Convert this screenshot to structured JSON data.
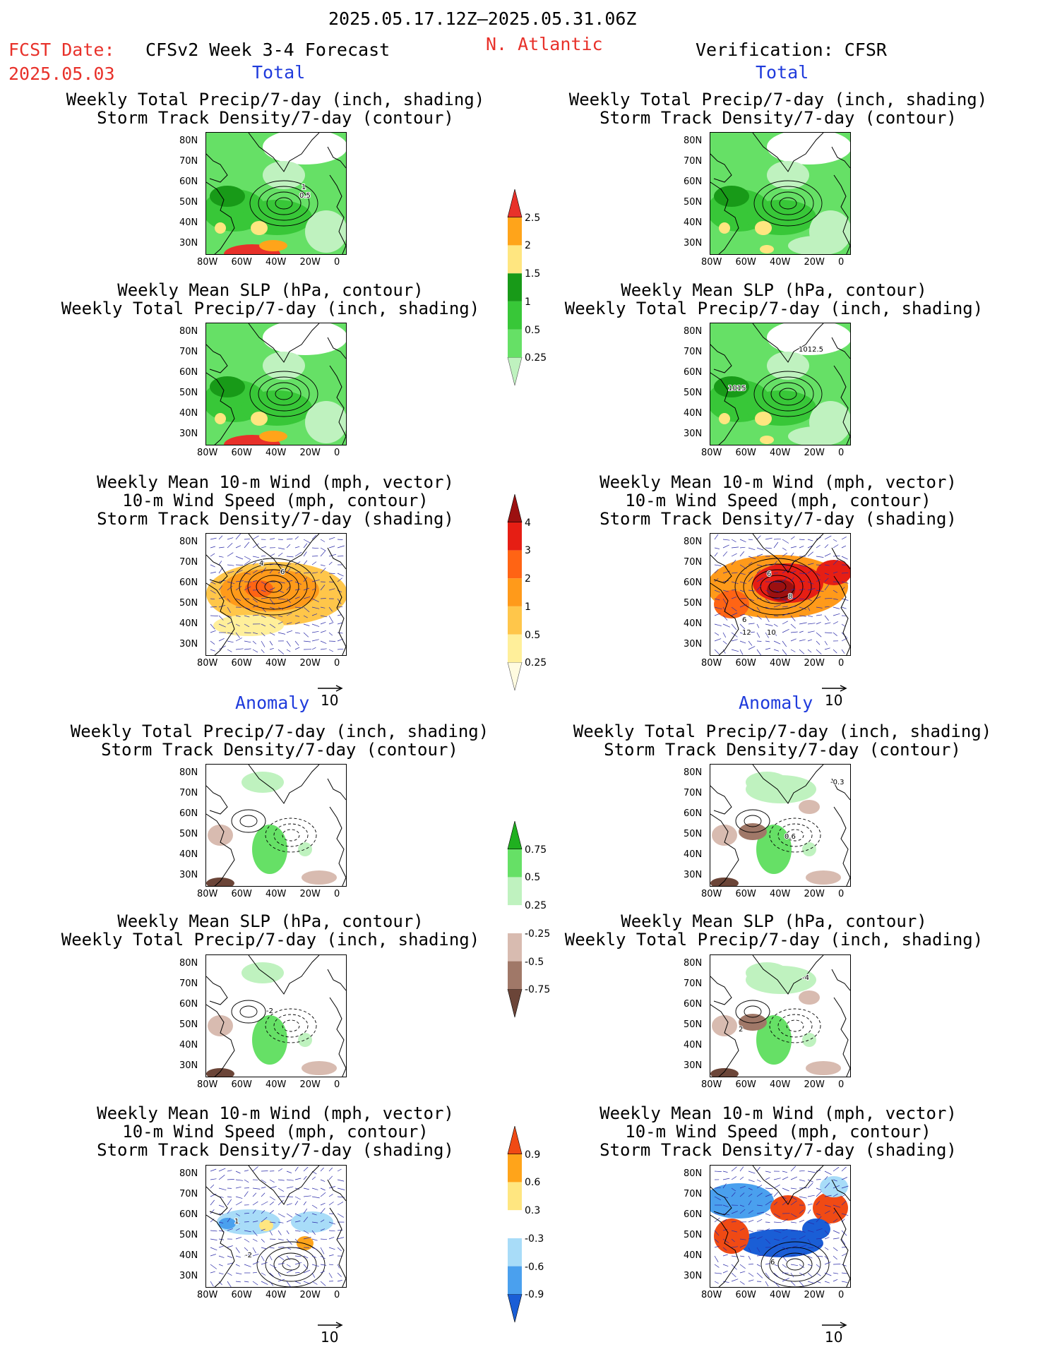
{
  "header": {
    "period": "2025.05.17.12Z–2025.05.31.06Z",
    "fcst_label": "FCST Date:",
    "fcst_date": "2025.05.03",
    "product": "CFSv2 Week 3-4 Forecast",
    "region": "N. Atlantic",
    "verification": "Verification: CFSR"
  },
  "sections": {
    "total": "Total",
    "anomaly": "Anomaly"
  },
  "titles": {
    "precip_storm": [
      "Weekly Total Precip/7-day (inch, shading)",
      "Storm Track Density/7-day (contour)"
    ],
    "slp_precip": [
      "Weekly Mean SLP (hPa, contour)",
      "Weekly Total Precip/7-day (inch, shading)"
    ],
    "wind_storm": [
      "Weekly Mean 10-m Wind (mph, vector)",
      "10-m Wind Speed (mph, contour)",
      "Storm Track Density/7-day (shading)"
    ]
  },
  "axes": {
    "x_ticks": [
      "80W",
      "60W",
      "40W",
      "20W",
      "0"
    ],
    "y_ticks": [
      "80N",
      "70N",
      "60N",
      "50N",
      "40N",
      "30N"
    ]
  },
  "vector_ref": "10",
  "contour_labels": {
    "p1_a": "1",
    "p1_b": "0.5",
    "p4_a": "1012.5",
    "p4_b": "1015",
    "p5_a": "4",
    "p5_b": "6",
    "p6_a": "6",
    "p6_b": "8",
    "p6_c": "6",
    "p6_d": "12",
    "p6_e": "10",
    "p8_a": "-0.3",
    "p8_b": "0.6",
    "p9_a": "-2",
    "p10_a": "-4",
    "p10_b": "2",
    "p11_a": "1",
    "p11_b": "-2",
    "p12_a": "6"
  },
  "chart_data": [
    {
      "type": "heatmap",
      "name": "Total precip colorbar",
      "levels": [
        "0.25",
        "0.5",
        "1",
        "1.5",
        "2",
        "2.5"
      ],
      "colors": [
        "#bff2bf",
        "#66e066",
        "#38c738",
        "#189a18",
        "#ffe680",
        "#ffa41a",
        "#e8312a"
      ]
    },
    {
      "type": "heatmap",
      "name": "Total storm track density colorbar",
      "levels": [
        "0.25",
        "0.5",
        "1",
        "2",
        "3",
        "4"
      ],
      "colors": [
        "#fffbe0",
        "#ffef9a",
        "#ffc64a",
        "#ff9a1a",
        "#ff6414",
        "#e61e14",
        "#9c1010"
      ]
    },
    {
      "type": "heatmap",
      "name": "Precip anomaly colorbar",
      "levels": [
        "-0.75",
        "-0.5",
        "-0.25",
        "0.25",
        "0.5",
        "0.75"
      ],
      "colors": [
        "#6b4538",
        "#a07868",
        "#d8bbb0",
        "#ffffff",
        "#bff2bf",
        "#66e066",
        "#20b020"
      ]
    },
    {
      "type": "heatmap",
      "name": "Storm track density anomaly colorbar",
      "levels": [
        "-0.9",
        "-0.6",
        "-0.3",
        "0.3",
        "0.6",
        "0.9"
      ],
      "colors": [
        "#1a5ed6",
        "#4aa0ee",
        "#a8dcf8",
        "#ffffff",
        "#ffe680",
        "#ffa41a",
        "#f04a14"
      ]
    }
  ]
}
